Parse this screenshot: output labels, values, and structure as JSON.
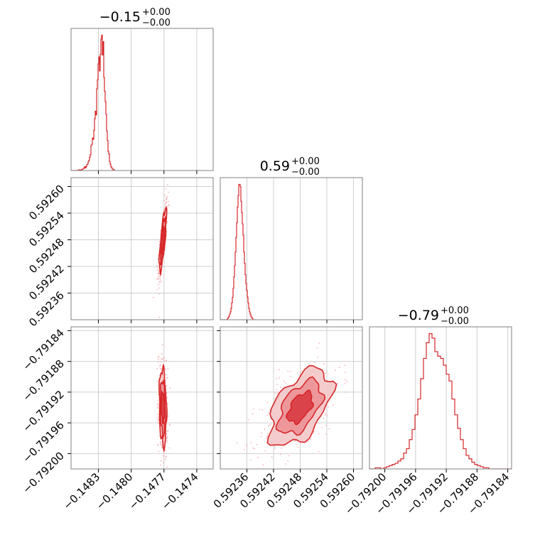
{
  "chart_data": {
    "type": "corner",
    "colors": {
      "line": "#d62728",
      "fill_outer": "#f4c6c8",
      "fill_mid": "#eb8d92",
      "fill_inner": "#d83a42",
      "grid": "#cfcfcf",
      "axis": "#808080",
      "scatter": "#f3b8bb"
    },
    "grid": true,
    "parameters": [
      {
        "title_value": "−0.15",
        "title_plus": "+0.00",
        "title_minus": "−0.00",
        "range": [
          -0.14855,
          -0.14725
        ],
        "ticks": [
          -0.1483,
          -0.148,
          -0.1477,
          -0.1474
        ],
        "tick_labels": [
          "−0.1483",
          "−0.1480",
          "−0.1477",
          "−0.1474"
        ],
        "mean": -0.14771,
        "sd": 1.65e-05
      },
      {
        "title_value": "0.59",
        "title_plus": "+0.00",
        "title_minus": "−0.00",
        "range": [
          0.5923,
          0.59262
        ],
        "ticks": [
          0.59236,
          0.59242,
          0.59248,
          0.59254,
          0.5926
        ],
        "tick_labels": [
          "0.59236",
          "0.59242",
          "0.59248",
          "0.59254",
          "0.59260"
        ],
        "mean": 0.59248,
        "sd": 3.5e-05
      },
      {
        "title_value": "−0.79",
        "title_plus": "+0.00",
        "title_minus": "−0.00",
        "range": [
          -0.79202,
          -0.791835
        ],
        "ticks": [
          -0.792,
          -0.79196,
          -0.79192,
          -0.79188,
          -0.79184
        ],
        "tick_labels": [
          "−0.79200",
          "−0.79196",
          "−0.79192",
          "−0.79188",
          "−0.79184"
        ],
        "mean": -0.79194,
        "sd": 2.5e-05
      }
    ],
    "histograms": [
      {
        "param": 0,
        "bin_edges_start": -0.14855,
        "bin_width": 6.5e-06,
        "counts": [
          0,
          0,
          0,
          0,
          0,
          0,
          0,
          0,
          0,
          0,
          1,
          1,
          1,
          1,
          1,
          2,
          2,
          3,
          4,
          6,
          4,
          6,
          9,
          10,
          14,
          16,
          21,
          25,
          39,
          41,
          51,
          49,
          63,
          81,
          93,
          87,
          128,
          142,
          167,
          178,
          156,
          182,
          206,
          212,
          181,
          202,
          146,
          124,
          108,
          88,
          62,
          47,
          30,
          26,
          14,
          10,
          6,
          4,
          2,
          2,
          1,
          0
        ]
      },
      {
        "param": 1,
        "bin_edges_start": 0.5923,
        "bin_width": 1.6e-06,
        "counts": [
          0,
          0,
          0,
          0,
          0,
          0,
          0,
          0,
          0,
          0,
          1,
          2,
          3,
          5,
          7,
          10,
          15,
          20,
          28,
          38,
          48,
          60,
          73,
          86,
          100,
          110,
          120,
          120,
          118,
          105,
          95,
          85,
          75,
          60,
          50,
          40,
          32,
          26,
          20,
          15,
          10,
          7,
          5,
          3,
          2,
          1,
          0,
          0,
          0,
          0
        ]
      },
      {
        "param": 2,
        "bin_edges_start": -0.79202,
        "bin_width": 3.7e-06,
        "counts": [
          0,
          0,
          1,
          1,
          0,
          1,
          2,
          3,
          4,
          5,
          7,
          9,
          14,
          18,
          26,
          35,
          48,
          62,
          80,
          98,
          112,
          120,
          116,
          104,
          100,
          98,
          92,
          84,
          78,
          62,
          48,
          36,
          26,
          18,
          12,
          9,
          6,
          4,
          3,
          2,
          1,
          1,
          0,
          0,
          0,
          0,
          0,
          0,
          0,
          0
        ]
      }
    ],
    "pairs": [
      {
        "x": 0,
        "y": 1,
        "rho": 0.78
      },
      {
        "x": 0,
        "y": 2,
        "rho": -0.18
      },
      {
        "x": 1,
        "y": 2,
        "rho": 0.52
      }
    ]
  }
}
